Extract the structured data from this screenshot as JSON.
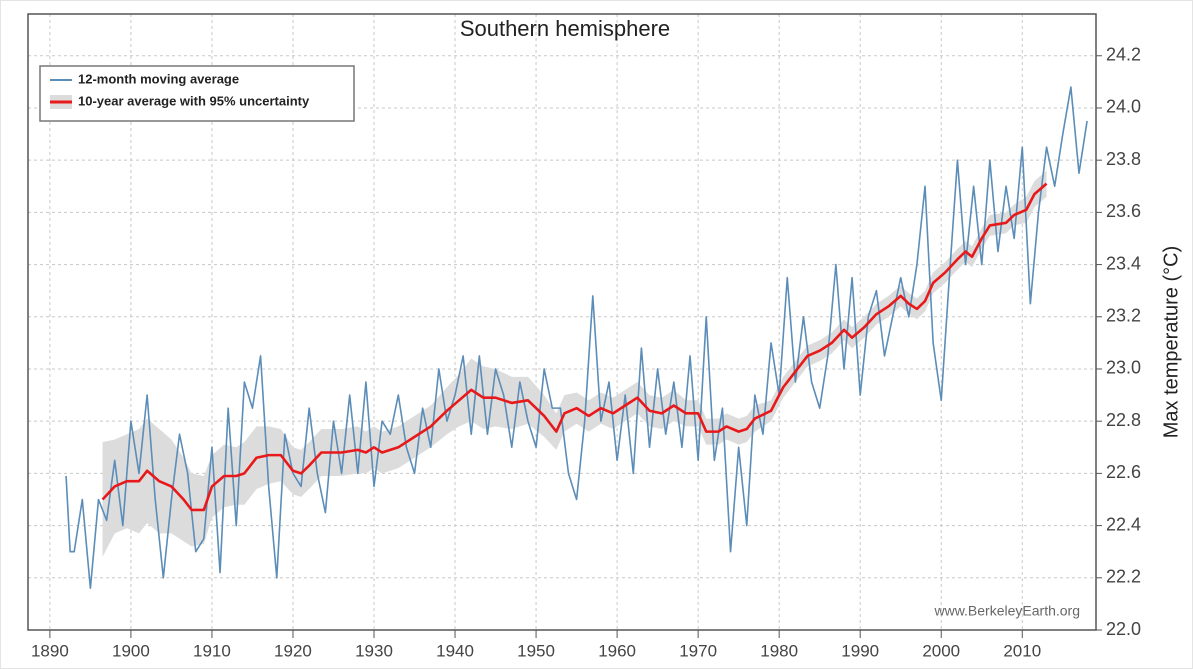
{
  "chart_data": {
    "type": "line",
    "title": "Southern hemisphere",
    "y_label": "Max temperature (°C)",
    "annotation": "www.BerkeleyEarth.org",
    "xlim": [
      1887.3,
      2019.1
    ],
    "ylim": [
      22.0,
      24.36
    ],
    "xticks": [
      1890,
      1900,
      1910,
      1920,
      1930,
      1940,
      1950,
      1960,
      1970,
      1980,
      1990,
      2000,
      2010
    ],
    "yticks": [
      {
        "value": 22.0,
        "label": "22.0"
      },
      {
        "value": 22.2,
        "label": "22.2"
      },
      {
        "value": 22.4,
        "label": "22.4"
      },
      {
        "value": 22.6,
        "label": "22.6"
      },
      {
        "value": 22.8,
        "label": "22.8"
      },
      {
        "value": 23.0,
        "label": "23.0"
      },
      {
        "value": 23.2,
        "label": "23.2"
      },
      {
        "value": 23.4,
        "label": "23.4"
      },
      {
        "value": 23.6,
        "label": "23.6"
      },
      {
        "value": 23.8,
        "label": "23.8"
      },
      {
        "value": 24.0,
        "label": "24.0"
      },
      {
        "value": 24.2,
        "label": "24.2"
      }
    ],
    "grid": true,
    "legend": "upper left",
    "series": [
      {
        "name": "12-month moving average",
        "color": "#5b8db8",
        "x": [
          1892,
          1892.5,
          1893,
          1894,
          1895,
          1896,
          1897,
          1898,
          1899,
          1900,
          1901,
          1902,
          1903,
          1904,
          1905,
          1906,
          1907,
          1908,
          1909,
          1910,
          1911,
          1912,
          1913,
          1914,
          1915,
          1916,
          1917,
          1918,
          1919,
          1920,
          1921,
          1922,
          1923,
          1924,
          1925,
          1926,
          1927,
          1928,
          1929,
          1930,
          1931,
          1932,
          1933,
          1934,
          1935,
          1936,
          1937,
          1938,
          1939,
          1940,
          1941,
          1942,
          1943,
          1944,
          1945,
          1946,
          1947,
          1948,
          1949,
          1950,
          1951,
          1952,
          1953,
          1954,
          1955,
          1956,
          1957,
          1958,
          1959,
          1960,
          1961,
          1962,
          1963,
          1964,
          1965,
          1966,
          1967,
          1968,
          1969,
          1970,
          1971,
          1972,
          1973,
          1974,
          1975,
          1976,
          1977,
          1978,
          1979,
          1980,
          1981,
          1982,
          1983,
          1984,
          1985,
          1986,
          1987,
          1988,
          1989,
          1990,
          1991,
          1992,
          1993,
          1994,
          1995,
          1996,
          1997,
          1998,
          1999,
          2000,
          2001,
          2002,
          2003,
          2004,
          2005,
          2006,
          2007,
          2008,
          2009,
          2010,
          2011,
          2012,
          2013,
          2014,
          2015,
          2016,
          2017,
          2018
        ],
        "values": [
          22.59,
          22.3,
          22.3,
          22.5,
          22.16,
          22.5,
          22.42,
          22.65,
          22.4,
          22.8,
          22.6,
          22.9,
          22.5,
          22.2,
          22.5,
          22.75,
          22.6,
          22.3,
          22.35,
          22.7,
          22.22,
          22.85,
          22.4,
          22.95,
          22.85,
          23.05,
          22.55,
          22.2,
          22.75,
          22.6,
          22.55,
          22.85,
          22.6,
          22.45,
          22.8,
          22.6,
          22.9,
          22.6,
          22.95,
          22.55,
          22.8,
          22.75,
          22.9,
          22.7,
          22.6,
          22.85,
          22.7,
          23.0,
          22.8,
          22.9,
          23.05,
          22.75,
          23.05,
          22.75,
          23.0,
          22.9,
          22.7,
          22.95,
          22.8,
          22.7,
          23.0,
          22.85,
          22.85,
          22.6,
          22.5,
          22.8,
          23.28,
          22.8,
          22.95,
          22.65,
          22.9,
          22.6,
          23.08,
          22.7,
          23.0,
          22.75,
          22.95,
          22.7,
          23.05,
          22.65,
          23.2,
          22.65,
          22.85,
          22.3,
          22.7,
          22.4,
          22.9,
          22.75,
          23.1,
          22.9,
          23.35,
          22.95,
          23.2,
          22.95,
          22.85,
          23.05,
          23.4,
          23.0,
          23.35,
          22.9,
          23.2,
          23.3,
          23.05,
          23.2,
          23.35,
          23.2,
          23.4,
          23.7,
          23.1,
          22.88,
          23.35,
          23.8,
          23.4,
          23.7,
          23.4,
          23.8,
          23.45,
          23.7,
          23.5,
          23.85,
          23.25,
          23.6,
          23.85,
          23.7,
          23.9,
          24.08,
          23.75,
          23.95
        ]
      },
      {
        "name": "10-year average with 95% uncertainty",
        "color": "#e8191b",
        "band_color": "#dcdcdc",
        "x": [
          1896.5,
          1898,
          1899.5,
          1901,
          1902,
          1903.5,
          1905,
          1906.5,
          1907.5,
          1909,
          1910,
          1911.5,
          1913,
          1914,
          1915.5,
          1917,
          1918.5,
          1920,
          1921,
          1922,
          1923.5,
          1926,
          1928,
          1929,
          1930,
          1931,
          1933,
          1935,
          1937,
          1939,
          1940.5,
          1942,
          1943.5,
          1945,
          1947,
          1949,
          1951,
          1952.5,
          1953.5,
          1955,
          1956.5,
          1958,
          1959.5,
          1961,
          1962.5,
          1964,
          1965.5,
          1967,
          1968.5,
          1970,
          1971,
          1972.5,
          1973.5,
          1975,
          1976,
          1977,
          1979,
          1980.5,
          1982,
          1983.5,
          1985,
          1986.5,
          1988,
          1989,
          1990.5,
          1992,
          1993.5,
          1995,
          1996,
          1997,
          1998,
          1999,
          2000.5,
          2002,
          2003,
          2003.8,
          2005,
          2006,
          2008,
          2009,
          2010.5,
          2011.5,
          2013
        ],
        "values": [
          22.5,
          22.55,
          22.57,
          22.57,
          22.61,
          22.57,
          22.55,
          22.5,
          22.46,
          22.46,
          22.55,
          22.59,
          22.59,
          22.6,
          22.66,
          22.67,
          22.67,
          22.61,
          22.6,
          22.63,
          22.68,
          22.68,
          22.69,
          22.68,
          22.7,
          22.68,
          22.7,
          22.74,
          22.78,
          22.84,
          22.88,
          22.92,
          22.89,
          22.89,
          22.87,
          22.88,
          22.82,
          22.76,
          22.83,
          22.85,
          22.82,
          22.85,
          22.83,
          22.86,
          22.89,
          22.84,
          22.83,
          22.86,
          22.83,
          22.83,
          22.76,
          22.76,
          22.78,
          22.76,
          22.77,
          22.81,
          22.84,
          22.93,
          22.99,
          23.05,
          23.07,
          23.1,
          23.15,
          23.12,
          23.16,
          23.21,
          23.24,
          23.28,
          23.25,
          23.23,
          23.26,
          23.33,
          23.37,
          23.42,
          23.45,
          23.43,
          23.5,
          23.55,
          23.56,
          23.59,
          23.61,
          23.67,
          23.71
        ],
        "uncertainty": [
          0.22,
          0.18,
          0.18,
          0.2,
          0.2,
          0.2,
          0.18,
          0.16,
          0.14,
          0.13,
          0.12,
          0.12,
          0.11,
          0.12,
          0.12,
          0.11,
          0.1,
          0.09,
          0.09,
          0.09,
          0.09,
          0.09,
          0.09,
          0.08,
          0.08,
          0.08,
          0.08,
          0.08,
          0.08,
          0.09,
          0.1,
          0.12,
          0.12,
          0.11,
          0.1,
          0.09,
          0.08,
          0.07,
          0.07,
          0.06,
          0.06,
          0.06,
          0.06,
          0.06,
          0.06,
          0.06,
          0.06,
          0.06,
          0.05,
          0.05,
          0.05,
          0.05,
          0.05,
          0.05,
          0.05,
          0.05,
          0.04,
          0.04,
          0.04,
          0.04,
          0.04,
          0.04,
          0.04,
          0.04,
          0.04,
          0.04,
          0.04,
          0.04,
          0.04,
          0.04,
          0.04,
          0.04,
          0.04,
          0.04,
          0.04,
          0.04,
          0.04,
          0.04,
          0.04,
          0.04,
          0.05,
          0.05,
          0.05
        ]
      }
    ]
  }
}
